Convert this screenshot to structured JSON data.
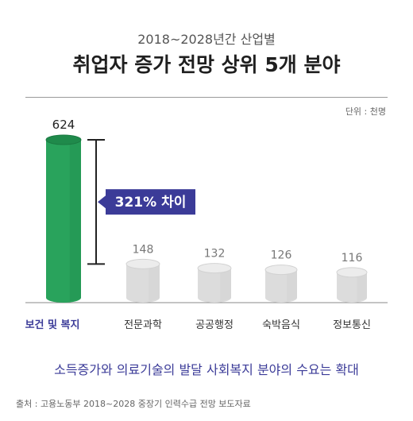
{
  "header": {
    "subtitle": "2018~2028년간 산업별",
    "title": "취업자 증가 전망 상위 5개 분야",
    "unit": "단위 : 천명"
  },
  "callout": {
    "text": "321% 차이"
  },
  "note": "소득증가와 의료기술의 발달 사회복지 분야의 수요는 확대",
  "source": "출처 : 고용노동부 2018~2028 중장기 인력수급 전망 보도자료",
  "colors": {
    "highlight_top": "#2fa860",
    "highlight_body": "#29a35c",
    "highlight_dark": "#1f8a4b",
    "grey_top": "#ececec",
    "grey_body": "#dcdcdc",
    "callout_bg": "#3b3b98",
    "highlight_label": "#3b3b98"
  },
  "chart_data": {
    "type": "bar",
    "categories": [
      "보건 및 복지",
      "전문과학",
      "공공행정",
      "숙박음식",
      "정보통신"
    ],
    "values": [
      624,
      148,
      132,
      126,
      116
    ],
    "highlight_index": 0
  }
}
